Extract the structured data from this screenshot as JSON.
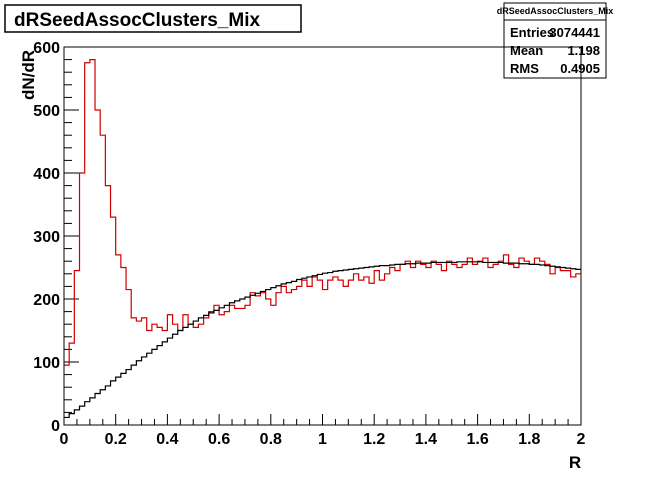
{
  "chart_data": {
    "type": "line",
    "title": "dRSeedAssocClusters_Mix",
    "xlabel": "R",
    "ylabel": "dN/dR",
    "xlim": [
      0,
      2
    ],
    "ylim": [
      0,
      600
    ],
    "x_ticks": [
      "0",
      "0.2",
      "0.4",
      "0.6",
      "0.8",
      "1",
      "1.2",
      "1.4",
      "1.6",
      "1.8",
      "2"
    ],
    "y_ticks": [
      "0",
      "100",
      "200",
      "300",
      "400",
      "500",
      "600"
    ],
    "bin_width": 0.02,
    "grid": false,
    "legend": "none",
    "stats_box": {
      "title": "dRSeedAssocClusters_Mix",
      "rows": [
        {
          "label": "Entries",
          "value": "3074441"
        },
        {
          "label": "Mean",
          "value": "1.198"
        },
        {
          "label": "RMS",
          "value": "0.4905"
        }
      ]
    },
    "series": [
      {
        "color": "#d00000",
        "values": [
          95,
          130,
          245,
          400,
          575,
          580,
          500,
          460,
          380,
          330,
          270,
          250,
          215,
          170,
          165,
          170,
          150,
          160,
          155,
          150,
          175,
          160,
          150,
          175,
          160,
          155,
          160,
          170,
          180,
          190,
          175,
          180,
          190,
          185,
          185,
          190,
          210,
          205,
          210,
          200,
          190,
          210,
          220,
          210,
          215,
          220,
          230,
          220,
          235,
          230,
          215,
          230,
          235,
          230,
          220,
          230,
          240,
          230,
          235,
          225,
          245,
          230,
          240,
          250,
          245,
          255,
          260,
          250,
          260,
          255,
          250,
          260,
          255,
          245,
          260,
          255,
          250,
          255,
          265,
          255,
          260,
          265,
          250,
          255,
          260,
          270,
          255,
          250,
          265,
          260,
          255,
          265,
          260,
          255,
          240,
          250,
          245,
          245,
          235,
          240
        ]
      },
      {
        "color": "#000000",
        "values": [
          12,
          18,
          24,
          30,
          37,
          43,
          50,
          56,
          62,
          70,
          76,
          82,
          88,
          95,
          102,
          108,
          114,
          120,
          126,
          132,
          138,
          144,
          150,
          155,
          160,
          165,
          170,
          174,
          178,
          182,
          186,
          190,
          194,
          197,
          200,
          203,
          206,
          209,
          212,
          215,
          218,
          221,
          224,
          226,
          228,
          231,
          233,
          235,
          237,
          239,
          241,
          242,
          244,
          245,
          246,
          247,
          248,
          249,
          250,
          251,
          252,
          253,
          253,
          254,
          255,
          255,
          256,
          256,
          257,
          257,
          257,
          258,
          258,
          258,
          258,
          258,
          259,
          259,
          259,
          259,
          259,
          258,
          258,
          258,
          258,
          257,
          257,
          257,
          256,
          256,
          255,
          255,
          254,
          253,
          252,
          251,
          250,
          249,
          248,
          247
        ]
      }
    ]
  }
}
